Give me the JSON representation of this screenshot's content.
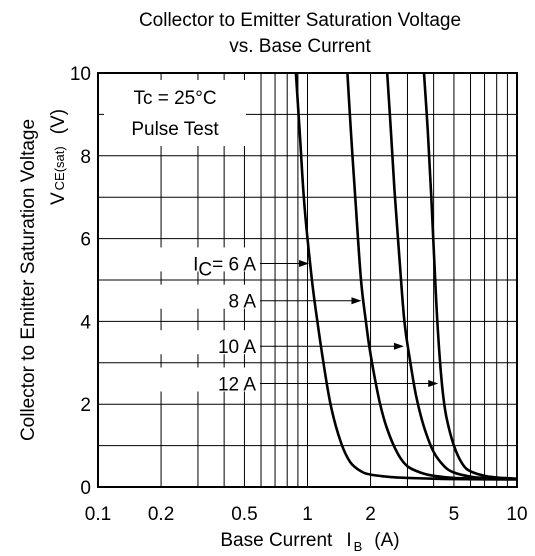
{
  "chart_data": {
    "type": "line",
    "title_line1": "Collector to Emitter Saturation Voltage",
    "title_line2": "vs. Base Current",
    "xlabel": "Base Current",
    "xlabel_symbol": "I",
    "xlabel_sub": "B",
    "xlabel_unit": "(A)",
    "ylabel": "Collector to Emitter Saturation Voltage",
    "ylabel_symbol": "V",
    "ylabel_sub": "CE(sat)",
    "ylabel_unit": "(V)",
    "x_scale": "log",
    "xlim": [
      0.1,
      10
    ],
    "ylim": [
      0,
      10
    ],
    "grid": true,
    "x_ticks": [
      "0.1",
      "0.2",
      "0.5",
      "1",
      "2",
      "5",
      "10"
    ],
    "x_tick_values": [
      0.1,
      0.2,
      0.5,
      1,
      2,
      5,
      10
    ],
    "y_ticks": [
      "0",
      "2",
      "4",
      "6",
      "8",
      "10"
    ],
    "y_tick_values": [
      0,
      2,
      4,
      6,
      8,
      10
    ],
    "conditions": [
      "Tc = 25°C",
      "Pulse Test"
    ],
    "series": [
      {
        "name": "IC = 6 A",
        "label_prefix": "I",
        "label_sub": "C",
        "label_rest": "= 6 A",
        "annotation_y": 5.4,
        "annotation_x": 1.04,
        "x": [
          0.88,
          0.92,
          0.96,
          1.0,
          1.05,
          1.1,
          1.2,
          1.3,
          1.45,
          1.6,
          1.8,
          2.0,
          2.5,
          3.0,
          4.0,
          5.0,
          10.0
        ],
        "y": [
          10.0,
          8.5,
          7.0,
          6.0,
          5.0,
          4.2,
          2.9,
          1.9,
          1.05,
          0.6,
          0.38,
          0.3,
          0.24,
          0.22,
          0.2,
          0.19,
          0.18
        ]
      },
      {
        "name": "8 A",
        "label_prefix": "",
        "label_sub": "",
        "label_rest": "8 A",
        "annotation_y": 4.5,
        "annotation_x": 1.85,
        "x": [
          1.55,
          1.62,
          1.7,
          1.8,
          1.9,
          2.0,
          2.2,
          2.4,
          2.7,
          3.0,
          3.5,
          4.0,
          5.0,
          7.0,
          10.0
        ],
        "y": [
          10.0,
          8.4,
          6.8,
          5.0,
          4.0,
          3.2,
          2.1,
          1.4,
          0.8,
          0.5,
          0.34,
          0.27,
          0.22,
          0.2,
          0.19
        ]
      },
      {
        "name": "10 A",
        "label_prefix": "",
        "label_sub": "",
        "label_rest": "10 A",
        "annotation_y": 3.4,
        "annotation_x": 2.95,
        "x": [
          2.4,
          2.5,
          2.6,
          2.75,
          2.9,
          3.1,
          3.3,
          3.6,
          4.0,
          4.5,
          5.0,
          6.0,
          7.0,
          10.0
        ],
        "y": [
          10.0,
          8.6,
          7.2,
          5.5,
          4.0,
          3.0,
          2.2,
          1.45,
          0.85,
          0.5,
          0.35,
          0.25,
          0.22,
          0.2
        ]
      },
      {
        "name": "12 A",
        "label_prefix": "",
        "label_sub": "",
        "label_rest": "12 A",
        "annotation_y": 2.5,
        "annotation_x": 4.3,
        "x": [
          3.6,
          3.75,
          3.9,
          4.05,
          4.2,
          4.4,
          4.6,
          5.0,
          5.5,
          6.0,
          7.0,
          8.0,
          10.0
        ],
        "y": [
          10.0,
          8.6,
          7.0,
          5.2,
          3.7,
          2.4,
          1.7,
          1.0,
          0.55,
          0.38,
          0.27,
          0.23,
          0.2
        ]
      }
    ]
  }
}
